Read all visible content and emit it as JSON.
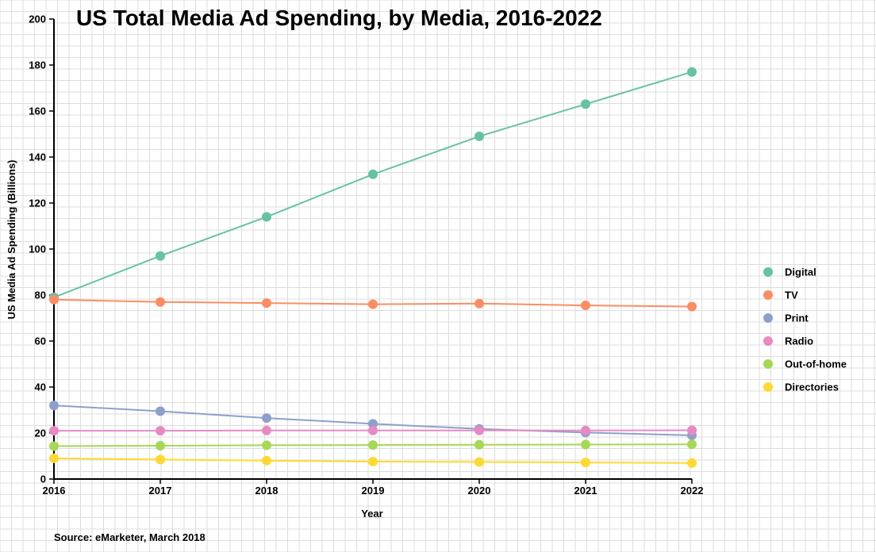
{
  "chart_data": {
    "type": "line",
    "title": "US Total Media Ad Spending, by Media, 2016-2022",
    "xlabel": "Year",
    "ylabel": "US Media Ad Spending (Billions)",
    "x": [
      2016,
      2017,
      2018,
      2019,
      2020,
      2021,
      2022
    ],
    "ylim": [
      0,
      200
    ],
    "yticks": [
      0,
      20,
      40,
      60,
      80,
      100,
      120,
      140,
      160,
      180,
      200
    ],
    "grid": true,
    "legend_position": "right",
    "series": [
      {
        "name": "Digital",
        "color": "#66c2a5",
        "values": [
          79,
          97,
          114,
          132.5,
          149,
          163,
          177
        ]
      },
      {
        "name": "TV",
        "color": "#fc8d62",
        "values": [
          78,
          77,
          76.5,
          76,
          76.3,
          75.5,
          75
        ]
      },
      {
        "name": "Print",
        "color": "#8da0cb",
        "values": [
          32,
          29.5,
          26.5,
          24,
          21.8,
          20.2,
          19
        ]
      },
      {
        "name": "Radio",
        "color": "#e78ac3",
        "values": [
          21,
          21,
          21.1,
          21.1,
          21.1,
          21.1,
          21.2
        ]
      },
      {
        "name": "Out-of-home",
        "color": "#a6d854",
        "values": [
          14.3,
          14.5,
          14.7,
          14.8,
          14.9,
          15,
          15.1
        ]
      },
      {
        "name": "Directories",
        "color": "#ffd92f",
        "values": [
          9,
          8.5,
          8,
          7.6,
          7.4,
          7.2,
          7
        ]
      }
    ]
  },
  "source": "Source: eMarketer, March 2018"
}
